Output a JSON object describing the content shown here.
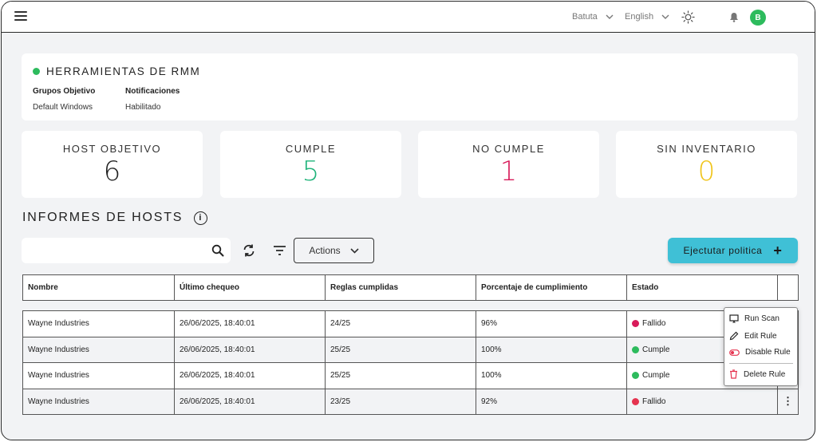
{
  "topbar": {
    "org_selector": "Batuta",
    "language_selector": "English",
    "avatar_initial": "B"
  },
  "policy": {
    "title": "HERRAMIENTAS DE RMM",
    "status_color": "#2dbb5d",
    "groups_label": "Grupos Objetivo",
    "groups_value": "Default Windows",
    "notifications_label": "Notificaciones",
    "notifications_value": "Habilitado"
  },
  "stats": [
    {
      "label": "HOST OBJETIVO",
      "value": "6",
      "color": "#222222"
    },
    {
      "label": "CUMPLE",
      "value": "5",
      "color": "#1fb37a"
    },
    {
      "label": "NO CUMPLE",
      "value": "1",
      "color": "#d81b5a"
    },
    {
      "label": "SIN INVENTARIO",
      "value": "0",
      "color": "#f0c419"
    }
  ],
  "reports": {
    "title": "INFORMES DE HOSTS",
    "search_placeholder": "",
    "actions_label": "Actions",
    "run_policy_label": "Ejectutar politica",
    "columns": [
      "Nombre",
      "Último chequeo",
      "Reglas cumplidas",
      "Porcentaje de cumplimiento",
      "Estado"
    ],
    "rows": [
      {
        "name": "Wayne Industries",
        "last_check": "26/06/2025, 18:40:01",
        "rules": "24/25",
        "percent": "96%",
        "status": "Fallido",
        "status_color": "#d81b5a"
      },
      {
        "name": "Wayne Industries",
        "last_check": "26/06/2025, 18:40:01",
        "rules": "25/25",
        "percent": "100%",
        "status": "Cumple",
        "status_color": "#2dbb5d"
      },
      {
        "name": "Wayne Industries",
        "last_check": "26/06/2025, 18:40:01",
        "rules": "25/25",
        "percent": "100%",
        "status": "Cumple",
        "status_color": "#2dbb5d"
      },
      {
        "name": "Wayne Industries",
        "last_check": "26/06/2025, 18:40:01",
        "rules": "23/25",
        "percent": "92%",
        "status": "Fallido",
        "status_color": "#e5334f"
      }
    ]
  },
  "context_menu": {
    "run_scan": "Run Scan",
    "edit_rule": "Edit Rule",
    "disable_rule": "Disable Rule",
    "delete_rule": "Delete Rule"
  }
}
